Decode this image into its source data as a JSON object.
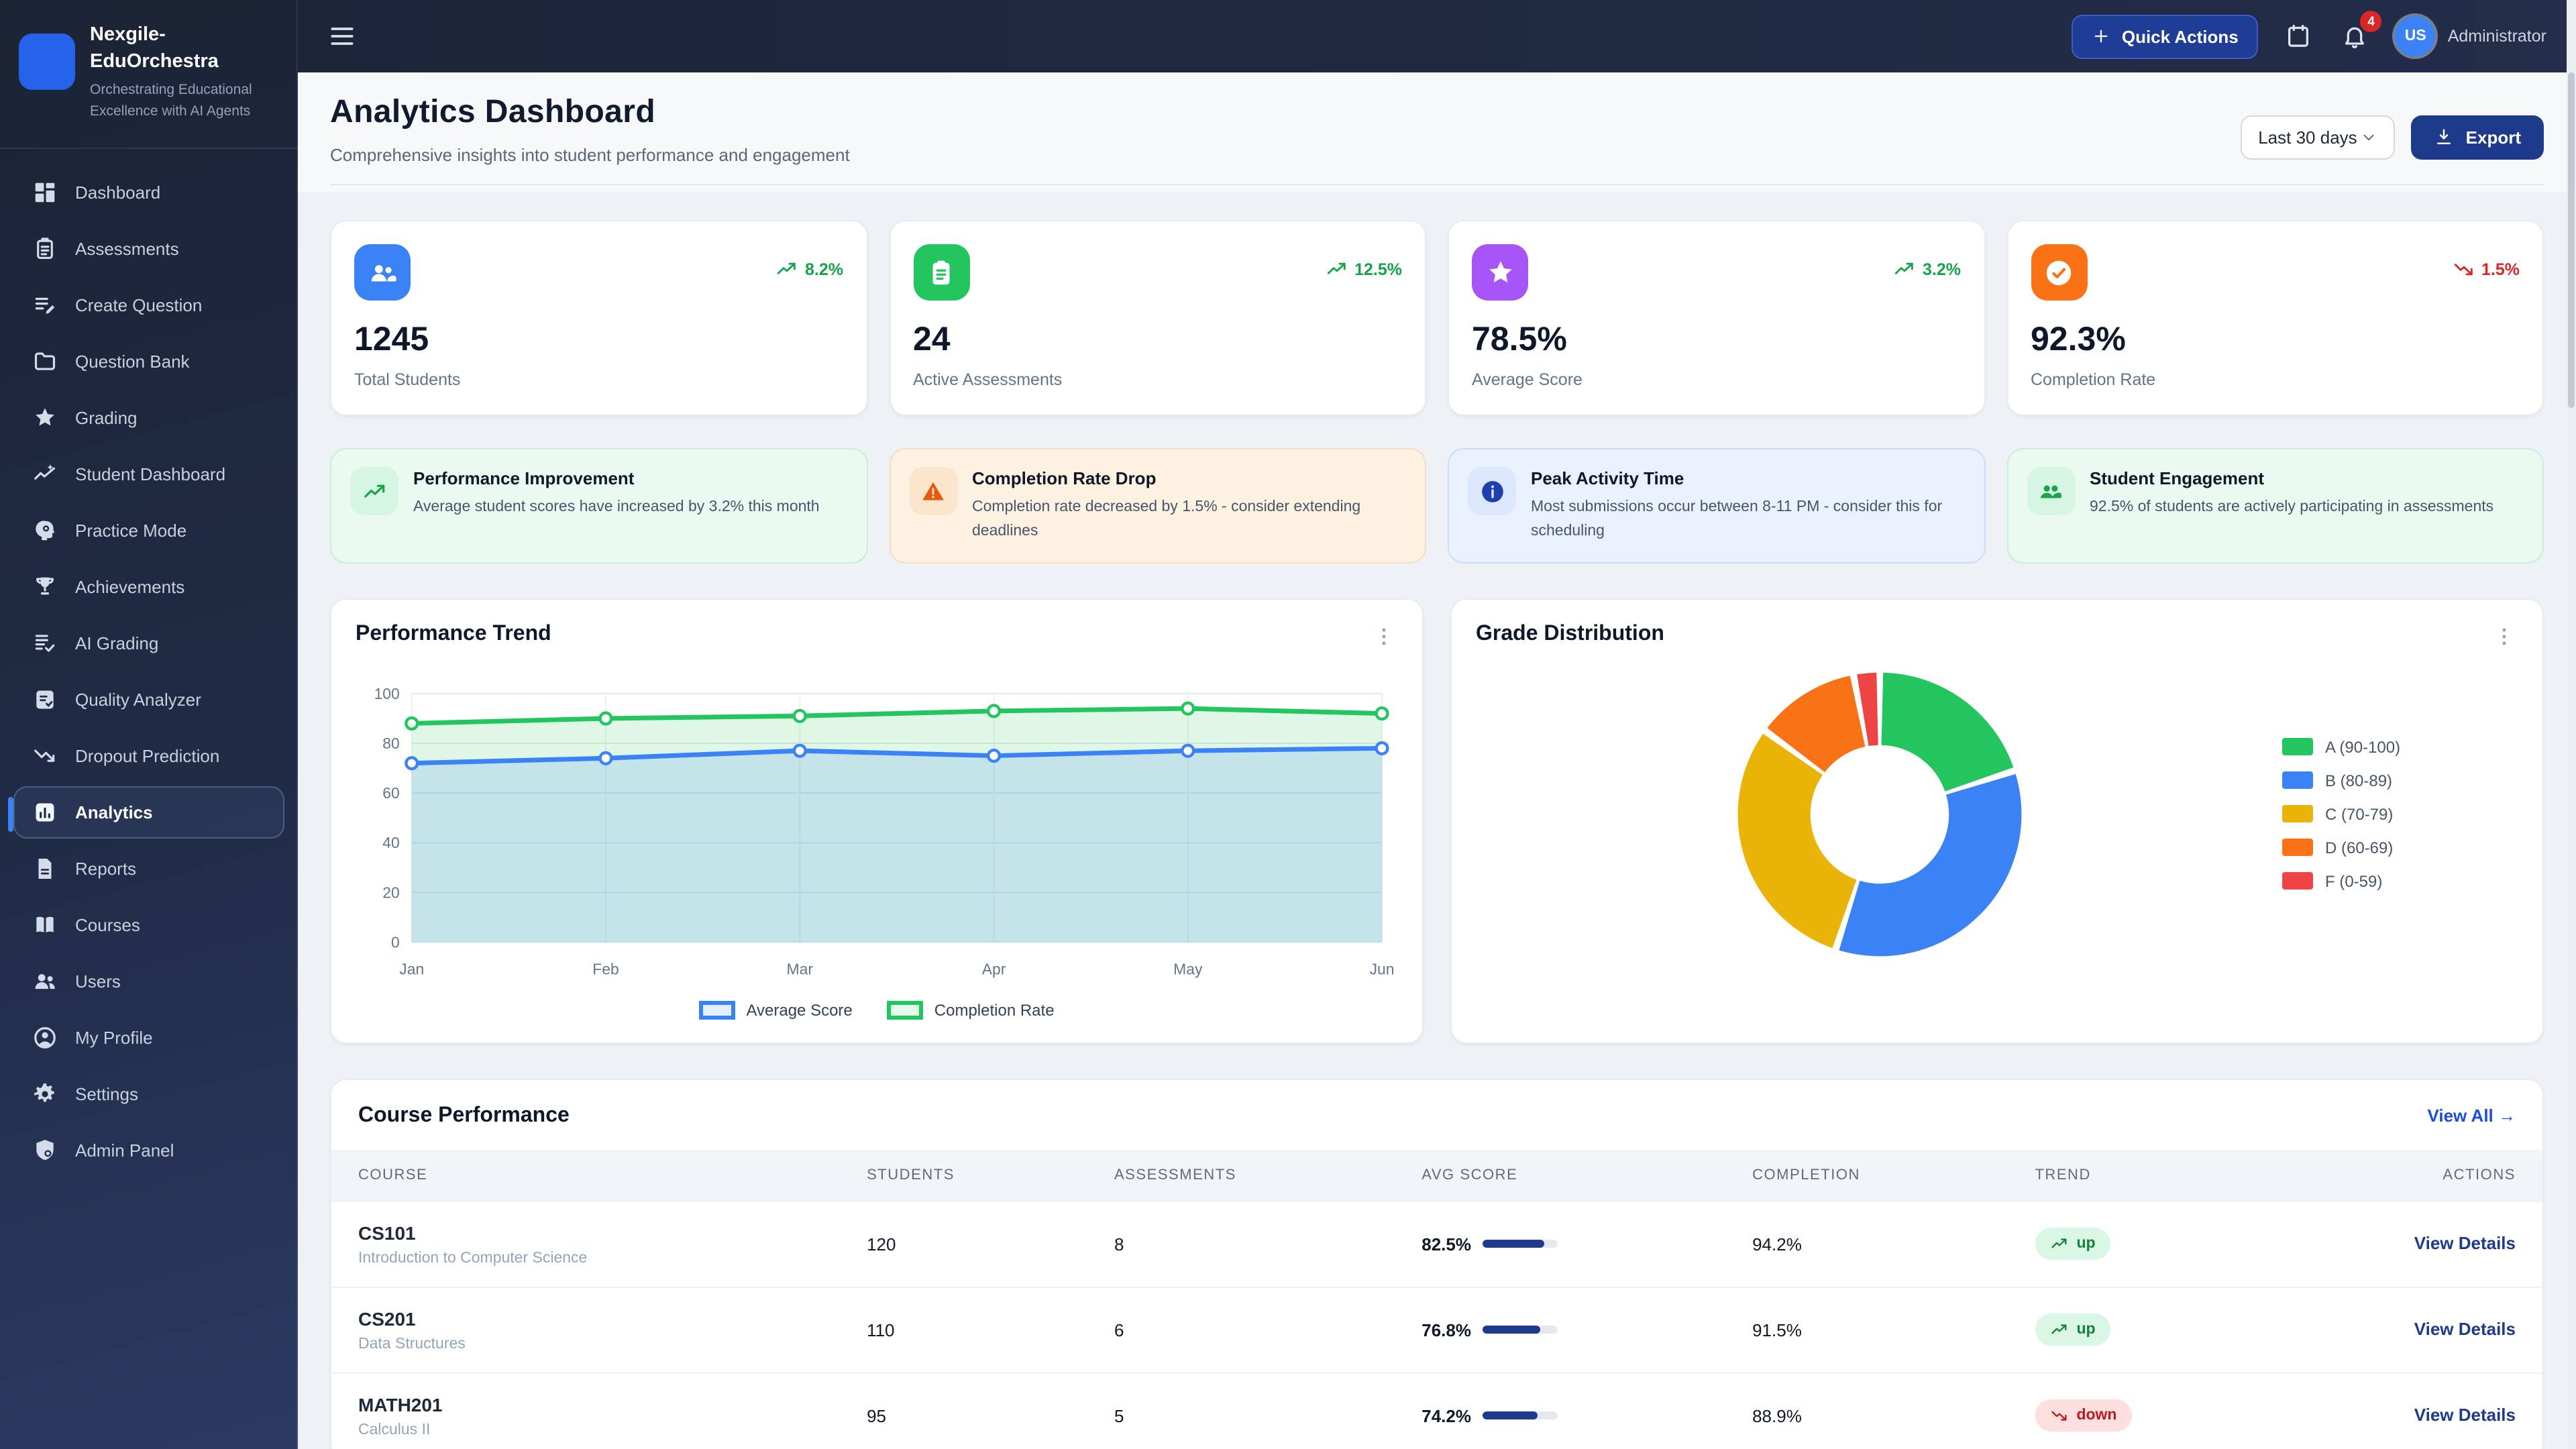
{
  "brand": {
    "title": "Nexgile-EduOrchestra",
    "tagline": "Orchestrating Educational Excellence with AI Agents"
  },
  "topbar": {
    "quick_actions_label": "Quick Actions",
    "notification_count": "4",
    "avatar_initials": "US",
    "user_role": "Administrator"
  },
  "page": {
    "title": "Analytics Dashboard",
    "subtitle": "Comprehensive insights into student performance and engagement",
    "date_range": "Last 30 days",
    "export_label": "Export"
  },
  "sidebar": {
    "items": [
      {
        "label": "Dashboard",
        "icon": "dashboard",
        "active": false
      },
      {
        "label": "Assessments",
        "icon": "assessments",
        "active": false
      },
      {
        "label": "Create Question",
        "icon": "create-question",
        "active": false
      },
      {
        "label": "Question Bank",
        "icon": "folder",
        "active": false
      },
      {
        "label": "Grading",
        "icon": "star",
        "active": false
      },
      {
        "label": "Student Dashboard",
        "icon": "student-trend",
        "active": false
      },
      {
        "label": "Practice Mode",
        "icon": "practice-head",
        "active": false
      },
      {
        "label": "Achievements",
        "icon": "trophy",
        "active": false
      },
      {
        "label": "AI Grading",
        "icon": "ai-grading",
        "active": false
      },
      {
        "label": "Quality Analyzer",
        "icon": "quality",
        "active": false
      },
      {
        "label": "Dropout Prediction",
        "icon": "trend-down",
        "active": false
      },
      {
        "label": "Analytics",
        "icon": "analytics",
        "active": true
      },
      {
        "label": "Reports",
        "icon": "report",
        "active": false
      },
      {
        "label": "Courses",
        "icon": "book",
        "active": false
      },
      {
        "label": "Users",
        "icon": "users",
        "active": false
      },
      {
        "label": "My Profile",
        "icon": "profile",
        "active": false
      },
      {
        "label": "Settings",
        "icon": "gear",
        "active": false
      },
      {
        "label": "Admin Panel",
        "icon": "shield",
        "active": false
      }
    ]
  },
  "stats": [
    {
      "icon": "group",
      "tile_color": "#3b82f6",
      "trend_dir": "up",
      "trend": "8.2%",
      "value": "1245",
      "label": "Total Students"
    },
    {
      "icon": "clipboard",
      "tile_color": "#22c55e",
      "trend_dir": "up",
      "trend": "12.5%",
      "value": "24",
      "label": "Active Assessments"
    },
    {
      "icon": "star",
      "tile_color": "#a855f7",
      "trend_dir": "up",
      "trend": "3.2%",
      "value": "78.5%",
      "label": "Average Score"
    },
    {
      "icon": "check-circle",
      "tile_color": "#f97316",
      "trend_dir": "down",
      "trend": "1.5%",
      "value": "92.3%",
      "label": "Completion Rate"
    }
  ],
  "insights": [
    {
      "theme": "green",
      "icon": "trend-up",
      "title": "Performance Improvement",
      "text": "Average student scores have increased by 3.2% this month"
    },
    {
      "theme": "orange",
      "icon": "warning",
      "title": "Completion Rate Drop",
      "text": "Completion rate decreased by 1.5% - consider extending deadlines"
    },
    {
      "theme": "blue",
      "icon": "info",
      "title": "Peak Activity Time",
      "text": "Most submissions occur between 8-11 PM - consider this for scheduling"
    },
    {
      "theme": "green",
      "icon": "people",
      "title": "Student Engagement",
      "text": "92.5% of students are actively participating in assessments"
    }
  ],
  "chart_data": [
    {
      "type": "line",
      "title": "Performance Trend",
      "x": [
        "Jan",
        "Feb",
        "Mar",
        "Apr",
        "May",
        "Jun"
      ],
      "ylim": [
        0,
        100
      ],
      "yticks": [
        0,
        20,
        40,
        60,
        80,
        100
      ],
      "grid": true,
      "legend_position": "bottom",
      "series": [
        {
          "name": "Average Score",
          "color": "#3b82f6",
          "fill": "rgba(59,130,246,0.16)",
          "swatch_fill": "#e4eefc",
          "values": [
            72,
            74,
            77,
            75,
            77,
            78
          ]
        },
        {
          "name": "Completion Rate",
          "color": "#22c55e",
          "fill": "rgba(34,197,94,0.14)",
          "swatch_fill": "#e6f9ed",
          "values": [
            88,
            90,
            91,
            93,
            94,
            92
          ]
        }
      ]
    },
    {
      "type": "donut",
      "title": "Grade Distribution",
      "labels": [
        "A (90-100)",
        "B (80-89)",
        "C (70-79)",
        "D (60-69)",
        "F (0-59)"
      ],
      "values": [
        20,
        35,
        30,
        12,
        3
      ],
      "colors": [
        "#22c55e",
        "#3b82f6",
        "#eab308",
        "#f97316",
        "#ef4444"
      ],
      "legend_position": "right"
    }
  ],
  "course_table": {
    "title": "Course Performance",
    "view_all": "View All →",
    "headers": [
      "COURSE",
      "STUDENTS",
      "ASSESSMENTS",
      "AVG SCORE",
      "COMPLETION",
      "TREND",
      "ACTIONS"
    ],
    "rows": [
      {
        "code": "CS101",
        "name": "Introduction to Computer Science",
        "students": "120",
        "assessments": "8",
        "avg_score": "82.5%",
        "avg_pct": 82.5,
        "completion": "94.2%",
        "trend": "up",
        "action": "View Details"
      },
      {
        "code": "CS201",
        "name": "Data Structures",
        "students": "110",
        "assessments": "6",
        "avg_score": "76.8%",
        "avg_pct": 76.8,
        "completion": "91.5%",
        "trend": "up",
        "action": "View Details"
      },
      {
        "code": "MATH201",
        "name": "Calculus II",
        "students": "95",
        "assessments": "5",
        "avg_score": "74.2%",
        "avg_pct": 74.2,
        "completion": "88.9%",
        "trend": "down",
        "action": "View Details"
      }
    ]
  }
}
